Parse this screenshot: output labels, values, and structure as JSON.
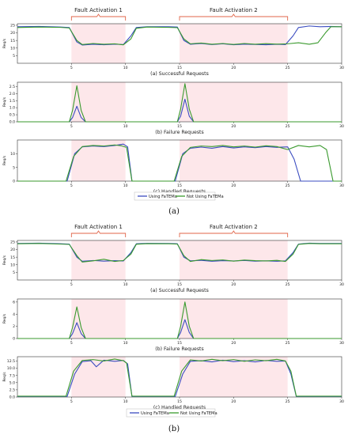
{
  "colors": {
    "series1": "#3b4cc0",
    "series2": "#3a9a2e",
    "fault_fill": "#fde7ea",
    "bracket": "#e0664a"
  },
  "figure": {
    "label_a": "(a)",
    "label_b": "(b)"
  },
  "chart_data": [
    {
      "type": "line",
      "title": "",
      "caption": "(a) Successful Requests",
      "ylabel": "Req/s",
      "xlim": [
        0,
        30
      ],
      "ylim": [
        0,
        26
      ],
      "xticks": [
        "5",
        "10",
        "15",
        "20",
        "25",
        "30"
      ],
      "yticks": [
        "5",
        "10",
        "15",
        "20",
        "25"
      ],
      "fault_labels": [
        "Fault Activation 1",
        "Fault Activation 2"
      ],
      "fault_windows": [
        [
          5,
          10
        ],
        [
          15,
          25
        ]
      ],
      "series": [
        {
          "name": "Using FaTEMa",
          "x": [
            0,
            2,
            4,
            4.8,
            5.5,
            6,
            7,
            8,
            9,
            9.8,
            10.5,
            11,
            12,
            14,
            14.8,
            15.4,
            16,
            17,
            18,
            19,
            20,
            21,
            22,
            23,
            24,
            24.8,
            25.5,
            26,
            27,
            28,
            29,
            30
          ],
          "y": [
            24,
            24.2,
            23.8,
            23.5,
            14,
            12,
            12.5,
            12.2,
            12.6,
            12.3,
            18,
            23.5,
            24,
            24,
            23.8,
            15,
            12.5,
            13,
            12.3,
            12.8,
            12.2,
            12.6,
            12.4,
            12.2,
            12.5,
            12.3,
            18,
            23.5,
            24.5,
            24,
            24.2,
            24
          ]
        },
        {
          "name": "Not Using FaTEMa",
          "x": [
            0,
            2,
            4,
            4.8,
            5.5,
            6,
            7,
            8,
            9,
            9.8,
            10.5,
            11,
            12,
            14,
            14.8,
            15.4,
            16,
            17,
            18,
            19,
            20,
            21,
            22,
            23,
            24,
            25,
            26,
            27,
            27.8,
            28.5,
            29,
            30
          ],
          "y": [
            23.5,
            23.8,
            23.6,
            23.2,
            15,
            12.3,
            13,
            12.5,
            12.8,
            12.1,
            16,
            23,
            23.8,
            23.6,
            23.4,
            16,
            12.8,
            13.3,
            12.5,
            13,
            12.4,
            13,
            12.5,
            12.9,
            12.6,
            12.8,
            13.5,
            12.5,
            13.5,
            20,
            24,
            24
          ]
        }
      ]
    },
    {
      "type": "line",
      "title": "",
      "caption": "(b) Failure Requests",
      "ylabel": "Req/s",
      "xlim": [
        0,
        30
      ],
      "ylim": [
        0,
        2.8
      ],
      "xticks": [
        "5",
        "10",
        "15",
        "20",
        "25",
        "30"
      ],
      "yticks": [
        "0.0",
        "0.5",
        "1.0",
        "1.5",
        "2.0",
        "2.5"
      ],
      "fault_windows": [
        [
          5,
          10
        ],
        [
          15,
          25
        ]
      ],
      "series": [
        {
          "name": "Using FaTEMa",
          "x": [
            0,
            4.8,
            5.1,
            5.5,
            5.9,
            6.3,
            14.8,
            15.1,
            15.5,
            15.9,
            16.3,
            30
          ],
          "y": [
            0,
            0,
            0.3,
            1.1,
            0.3,
            0,
            0,
            0.4,
            1.6,
            0.4,
            0,
            0
          ]
        },
        {
          "name": "Not Using FaTEMa",
          "x": [
            0,
            4.8,
            5.1,
            5.5,
            5.9,
            6.3,
            14.8,
            15.1,
            15.5,
            15.9,
            16.3,
            30
          ],
          "y": [
            0,
            0,
            0.8,
            2.55,
            0.8,
            0,
            0,
            0.9,
            2.7,
            0.9,
            0,
            0
          ]
        }
      ]
    },
    {
      "type": "line",
      "title": "",
      "caption": "(c) Handled Requests",
      "ylabel": "Req/s",
      "xlim": [
        0,
        30
      ],
      "ylim": [
        0,
        15
      ],
      "xticks": [
        "5",
        "10",
        "15",
        "20",
        "25",
        "30"
      ],
      "yticks": [
        "0",
        "5",
        "10"
      ],
      "fault_windows": [
        [
          5,
          10
        ],
        [
          15,
          25
        ]
      ],
      "series": [
        {
          "name": "Using FaTEMa",
          "x": [
            0,
            4.6,
            5.3,
            6,
            7,
            8,
            9,
            9.8,
            10.2,
            10.6,
            14.6,
            15.3,
            16,
            17,
            18,
            19,
            20,
            21,
            22,
            23,
            24,
            25,
            25.6,
            26.2,
            26.8,
            30
          ],
          "y": [
            0,
            0,
            10,
            12.5,
            12.8,
            12.6,
            13,
            13.5,
            12.5,
            0,
            0,
            10,
            12,
            12.4,
            12,
            12.6,
            12.1,
            12.5,
            12.2,
            12.6,
            12.3,
            12.5,
            8,
            0,
            0,
            0
          ]
        },
        {
          "name": "Not Using FaTEMa",
          "x": [
            0,
            4.5,
            5.2,
            6,
            7,
            8,
            9,
            9.6,
            10.1,
            10.6,
            14.5,
            15.2,
            16,
            17,
            18,
            19,
            20,
            21,
            22,
            23,
            24,
            25,
            26,
            27,
            28,
            28.6,
            29.2,
            30
          ],
          "y": [
            0,
            0,
            9,
            12.6,
            13,
            12.8,
            13.2,
            12.9,
            12.3,
            0,
            0,
            9,
            12.3,
            12.8,
            12.6,
            13,
            12.5,
            12.8,
            12.4,
            12.9,
            12.6,
            11.5,
            13,
            12.5,
            13,
            11.5,
            0,
            0
          ]
        }
      ]
    },
    {
      "type": "line",
      "title": "",
      "caption": "(a) Successful Requests",
      "ylabel": "Req/s",
      "xlim": [
        0,
        30
      ],
      "ylim": [
        0,
        26
      ],
      "xticks": [
        "5",
        "10",
        "15",
        "20",
        "25",
        "30"
      ],
      "yticks": [
        "5",
        "10",
        "15",
        "20",
        "25"
      ],
      "fault_labels": [
        "Fault Activation 1",
        "Fault Activation 2"
      ],
      "fault_windows": [
        [
          5,
          10
        ],
        [
          15,
          25
        ]
      ],
      "series": [
        {
          "name": "Using FaTEMa",
          "x": [
            0,
            2,
            4,
            4.8,
            5.5,
            6,
            7,
            8,
            9,
            9.8,
            10.5,
            11,
            12,
            14,
            14.8,
            15.4,
            16,
            17,
            18,
            19,
            20,
            21,
            22,
            23,
            24,
            24.8,
            25.5,
            26,
            27,
            28,
            30
          ],
          "y": [
            24,
            24.2,
            23.8,
            23.6,
            15,
            12.3,
            12.8,
            12.4,
            12.7,
            12.5,
            18,
            23.8,
            24.1,
            24,
            23.8,
            15,
            12.6,
            12.9,
            12.3,
            12.7,
            12.5,
            12.8,
            12.4,
            12.6,
            12.3,
            12.6,
            18,
            23.6,
            24.2,
            24,
            24
          ]
        },
        {
          "name": "Not Using FaTEMa",
          "x": [
            0,
            2,
            4,
            4.8,
            5.5,
            6,
            7,
            8,
            9,
            9.8,
            10.5,
            11,
            12,
            14,
            14.8,
            15.4,
            16,
            17,
            18,
            19,
            20,
            21,
            22,
            23,
            24,
            24.8,
            25.5,
            26,
            27,
            28,
            30
          ],
          "y": [
            23.8,
            24,
            23.6,
            23.4,
            16,
            11.8,
            12.6,
            13.6,
            12.2,
            12.8,
            17,
            23.5,
            23.9,
            23.8,
            23.6,
            16,
            12.2,
            13.4,
            12.8,
            13.2,
            12.4,
            13.1,
            12.7,
            12.5,
            12.9,
            12.2,
            17,
            23.4,
            24,
            23.8,
            23.8
          ]
        }
      ]
    },
    {
      "type": "line",
      "title": "",
      "caption": "(b) Failure Requests",
      "ylabel": "Req/s",
      "xlim": [
        0,
        30
      ],
      "ylim": [
        0,
        6.5
      ],
      "xticks": [
        "5",
        "10",
        "15",
        "20",
        "25",
        "30"
      ],
      "yticks": [
        "0",
        "2",
        "4",
        "6"
      ],
      "fault_windows": [
        [
          5,
          10
        ],
        [
          15,
          25
        ]
      ],
      "series": [
        {
          "name": "Using FaTEMa",
          "x": [
            0,
            4.8,
            5.1,
            5.5,
            5.9,
            6.3,
            14.8,
            15.1,
            15.5,
            15.9,
            16.3,
            30
          ],
          "y": [
            0,
            0,
            0.8,
            2.6,
            0.8,
            0,
            0,
            1,
            3.1,
            1,
            0,
            0
          ]
        },
        {
          "name": "Not Using FaTEMa",
          "x": [
            0,
            4.8,
            5.1,
            5.5,
            5.9,
            6.3,
            14.8,
            15.1,
            15.5,
            15.9,
            16.3,
            30
          ],
          "y": [
            0,
            0,
            1.8,
            5.2,
            1.8,
            0,
            0,
            2,
            6,
            2,
            0,
            0
          ]
        }
      ]
    },
    {
      "type": "line",
      "title": "",
      "caption": "(c) Handled Requests",
      "ylabel": "Req/s",
      "xlim": [
        0,
        30
      ],
      "ylim": [
        0,
        14
      ],
      "xticks": [
        "5",
        "10",
        "15",
        "20",
        "25",
        "30"
      ],
      "yticks": [
        "0.0",
        "2.5",
        "5.0",
        "7.5",
        "10.0",
        "12.5"
      ],
      "fault_windows": [
        [
          5,
          10
        ],
        [
          15,
          25
        ]
      ],
      "series": [
        {
          "name": "Using FaTEMa",
          "x": [
            0,
            4.6,
            5.3,
            6,
            6.8,
            7.3,
            8,
            9,
            9.8,
            10.2,
            10.6,
            14.6,
            15.3,
            16,
            17,
            18,
            19,
            20,
            21,
            22,
            23,
            24,
            24.8,
            25.3,
            25.8,
            30
          ],
          "y": [
            0.2,
            0.2,
            8,
            12.3,
            12.6,
            10.5,
            12.8,
            12.4,
            12.7,
            11.5,
            0.2,
            0.2,
            8,
            12.4,
            12.6,
            12.2,
            12.8,
            12.3,
            12.6,
            12.2,
            12.7,
            12.4,
            12.5,
            8,
            0.2,
            0.2
          ]
        },
        {
          "name": "Not Using FaTEMa",
          "x": [
            0,
            4.5,
            5.2,
            6,
            7,
            8,
            9,
            9.8,
            10.1,
            10.6,
            14.5,
            15.2,
            16,
            17,
            18,
            19,
            20,
            21,
            22,
            23,
            24,
            24.8,
            25.3,
            25.8,
            30
          ],
          "y": [
            0.3,
            0.3,
            9,
            12.7,
            13,
            12.5,
            13.2,
            12.6,
            11.8,
            0.3,
            0.3,
            9,
            12.9,
            12.5,
            13.1,
            12.6,
            13,
            12.4,
            12.9,
            12.6,
            13.1,
            12.5,
            9,
            0.3,
            0.3
          ]
        }
      ]
    }
  ]
}
